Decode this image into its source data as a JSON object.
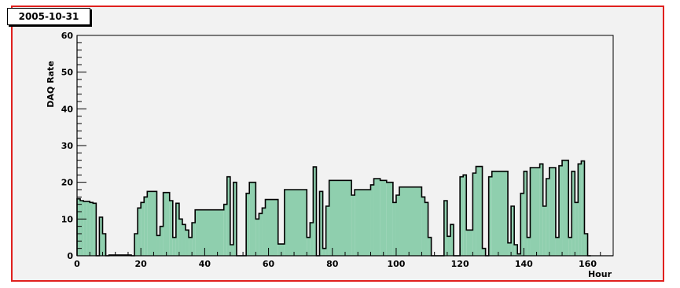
{
  "title": "2005-10-31",
  "chart_data": {
    "type": "area",
    "title": "2005-10-31",
    "xlabel": "Hour",
    "ylabel": "DAQ Rate",
    "xlim": [
      0,
      168
    ],
    "ylim": [
      0,
      60
    ],
    "x_ticks": [
      0,
      20,
      40,
      60,
      80,
      100,
      120,
      140,
      160
    ],
    "y_ticks": [
      0,
      10,
      20,
      30,
      40,
      50,
      60
    ],
    "grid": false,
    "fill_color": "#8fcfae",
    "line_color": "#000000",
    "series": [
      {
        "bins": [
          [
            0,
            1,
            15.5
          ],
          [
            1,
            2,
            15
          ],
          [
            2,
            3,
            14.8
          ],
          [
            3,
            4,
            14.8
          ],
          [
            4,
            5,
            14.5
          ],
          [
            5,
            6,
            14.3
          ],
          [
            6,
            7,
            0
          ],
          [
            7,
            8,
            10.5
          ],
          [
            8,
            9,
            6
          ],
          [
            9,
            10,
            0
          ],
          [
            10,
            17,
            0.2
          ],
          [
            17,
            18,
            0
          ],
          [
            18,
            19,
            6
          ],
          [
            19,
            20,
            13
          ],
          [
            20,
            21,
            14.5
          ],
          [
            21,
            22,
            16
          ],
          [
            22,
            25,
            17.5
          ],
          [
            25,
            26,
            5.5
          ],
          [
            26,
            27,
            8
          ],
          [
            27,
            29,
            17.2
          ],
          [
            29,
            30,
            15
          ],
          [
            30,
            31,
            5
          ],
          [
            31,
            32,
            14.3
          ],
          [
            32,
            33,
            10
          ],
          [
            33,
            34,
            8.5
          ],
          [
            34,
            35,
            7
          ],
          [
            35,
            36,
            5
          ],
          [
            36,
            37,
            9
          ],
          [
            37,
            46,
            12.5
          ],
          [
            46,
            47,
            14
          ],
          [
            47,
            48,
            21.5
          ],
          [
            48,
            49,
            3
          ],
          [
            49,
            50,
            20
          ],
          [
            50,
            53,
            0
          ],
          [
            53,
            54,
            17
          ],
          [
            54,
            56,
            20
          ],
          [
            56,
            57,
            10
          ],
          [
            57,
            58,
            11.5
          ],
          [
            58,
            59,
            13
          ],
          [
            59,
            63,
            15.3
          ],
          [
            63,
            65,
            3.2
          ],
          [
            65,
            72,
            18
          ],
          [
            72,
            73,
            5
          ],
          [
            73,
            74,
            9
          ],
          [
            74,
            75,
            24.2
          ],
          [
            75,
            76,
            0
          ],
          [
            76,
            77,
            17.5
          ],
          [
            77,
            78,
            2
          ],
          [
            78,
            79,
            13.5
          ],
          [
            79,
            86,
            20.5
          ],
          [
            86,
            87,
            16.5
          ],
          [
            87,
            92,
            18
          ],
          [
            92,
            93,
            19.3
          ],
          [
            93,
            95,
            21
          ],
          [
            95,
            97,
            20.5
          ],
          [
            97,
            99,
            20
          ],
          [
            99,
            100,
            14.5
          ],
          [
            100,
            101,
            16.5
          ],
          [
            101,
            108,
            18.7
          ],
          [
            108,
            109,
            16
          ],
          [
            109,
            110,
            14.5
          ],
          [
            110,
            111,
            5
          ],
          [
            111,
            115,
            0
          ],
          [
            115,
            116,
            15
          ],
          [
            116,
            117,
            5.3
          ],
          [
            117,
            118,
            8.5
          ],
          [
            118,
            120,
            0
          ],
          [
            120,
            121,
            21.5
          ],
          [
            121,
            122,
            22
          ],
          [
            122,
            124,
            7
          ],
          [
            124,
            125,
            22.5
          ],
          [
            125,
            127,
            24.3
          ],
          [
            127,
            128,
            2
          ],
          [
            128,
            129,
            0
          ],
          [
            129,
            130,
            21.5
          ],
          [
            130,
            135,
            23
          ],
          [
            135,
            136,
            3.5
          ],
          [
            136,
            137,
            13.5
          ],
          [
            137,
            138,
            3
          ],
          [
            138,
            139,
            0.5
          ],
          [
            139,
            140,
            17
          ],
          [
            140,
            141,
            23
          ],
          [
            141,
            142,
            5
          ],
          [
            142,
            145,
            24
          ],
          [
            145,
            146,
            25
          ],
          [
            146,
            147,
            13.5
          ],
          [
            147,
            148,
            21
          ],
          [
            148,
            150,
            24
          ],
          [
            150,
            151,
            5
          ],
          [
            151,
            152,
            24.5
          ],
          [
            152,
            154,
            26
          ],
          [
            154,
            155,
            5
          ],
          [
            155,
            156,
            23
          ],
          [
            156,
            157,
            14.5
          ],
          [
            157,
            158,
            25
          ],
          [
            158,
            159,
            25.8
          ],
          [
            159,
            160,
            6
          ],
          [
            160,
            161,
            0
          ]
        ]
      }
    ]
  }
}
